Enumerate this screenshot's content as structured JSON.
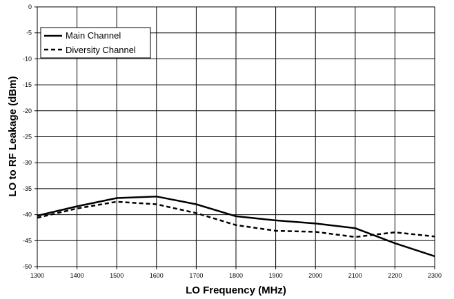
{
  "chart_data": {
    "type": "line",
    "title": "",
    "xlabel": "LO Frequency (MHz)",
    "ylabel": "LO to RF Leakage (dBm)",
    "xlim": [
      1300,
      2300
    ],
    "ylim": [
      -50,
      0
    ],
    "x_ticks": [
      1300,
      1400,
      1500,
      1600,
      1700,
      1800,
      1900,
      2000,
      2100,
      2200,
      2300
    ],
    "y_ticks": [
      0,
      -5,
      -10,
      -15,
      -20,
      -25,
      -30,
      -35,
      -40,
      -45,
      -50
    ],
    "grid": true,
    "legend_position": "top-left",
    "x": [
      1300,
      1400,
      1500,
      1600,
      1700,
      1800,
      1900,
      2000,
      2100,
      2200,
      2300
    ],
    "series": [
      {
        "name": "Main Channel",
        "style": "solid",
        "color": "#000000",
        "values": [
          -40.2,
          -38.4,
          -36.8,
          -36.5,
          -38.0,
          -40.3,
          -41.1,
          -41.7,
          -42.6,
          -45.5,
          -48.0
        ]
      },
      {
        "name": "Diversity Channel",
        "style": "dashed",
        "color": "#000000",
        "values": [
          -40.6,
          -38.8,
          -37.5,
          -38.0,
          -39.7,
          -42.0,
          -43.1,
          -43.3,
          -44.3,
          -43.4,
          -44.2
        ]
      }
    ]
  }
}
